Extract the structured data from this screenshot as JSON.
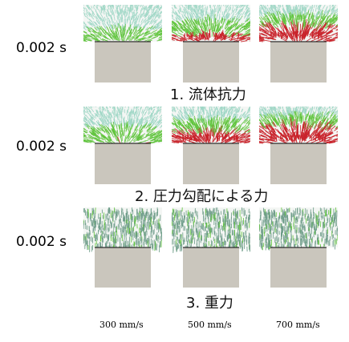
{
  "rows": [
    {
      "time": "0.002 s",
      "caption": "1. 流体抗力",
      "kind": "drag",
      "intensity": [
        0.35,
        0.6,
        0.9
      ]
    },
    {
      "time": "0.002 s",
      "caption": "2. 圧力勾配による力",
      "kind": "pressure",
      "intensity": [
        0.45,
        0.75,
        1.0
      ]
    },
    {
      "time": "0.002 s",
      "caption": "3. 重力",
      "kind": "gravity",
      "intensity": [
        0.2,
        0.2,
        0.2
      ]
    }
  ],
  "speeds": [
    "300 mm/s",
    "500 mm/s",
    "700 mm/s"
  ],
  "colors": {
    "block": "#cac6bd",
    "low": "#9fd7c6",
    "mid": "#5ec43a",
    "high": "#c9232b",
    "gravity": "#6a9a86"
  }
}
